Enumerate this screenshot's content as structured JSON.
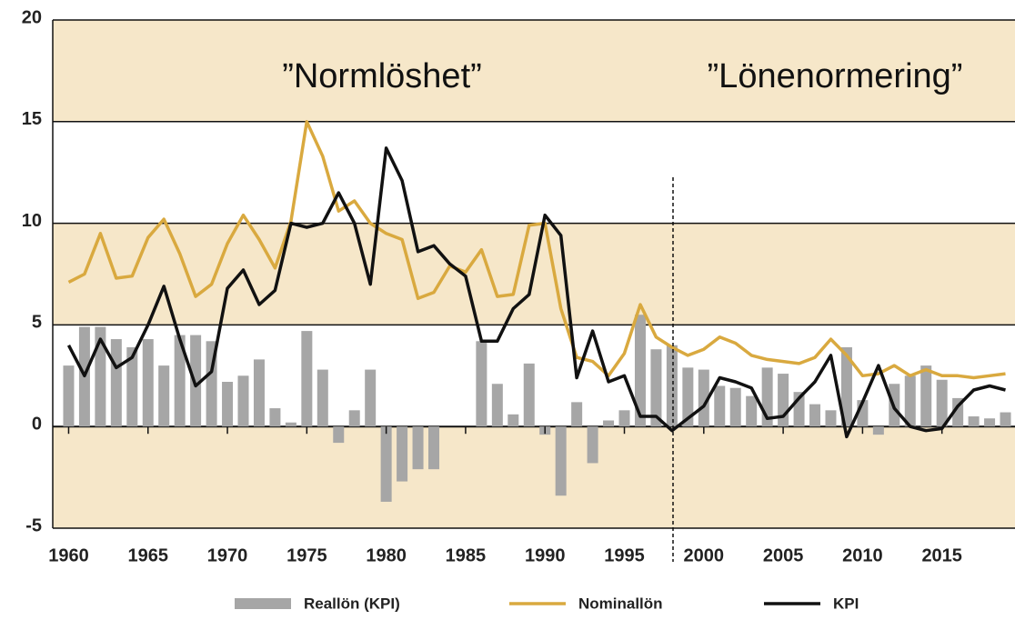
{
  "chart_data": {
    "type": "bar_line",
    "annotations": [
      "”Normlöshet”",
      "”Lönenormering”"
    ],
    "x": [
      1960,
      1961,
      1962,
      1963,
      1964,
      1965,
      1966,
      1967,
      1968,
      1969,
      1970,
      1971,
      1972,
      1973,
      1974,
      1975,
      1976,
      1977,
      1978,
      1979,
      1980,
      1981,
      1982,
      1983,
      1984,
      1985,
      1986,
      1987,
      1988,
      1989,
      1990,
      1991,
      1992,
      1993,
      1994,
      1995,
      1996,
      1997,
      1998,
      1999,
      2000,
      2001,
      2002,
      2003,
      2004,
      2005,
      2006,
      2007,
      2008,
      2009,
      2010,
      2011,
      2012,
      2013,
      2014,
      2015,
      2016,
      2017,
      2018,
      2019
    ],
    "series": [
      {
        "name": "Reallön (KPI)",
        "kind": "bar",
        "color": "#a6a6a6",
        "values": [
          3.0,
          4.9,
          4.9,
          4.3,
          3.9,
          4.3,
          3.0,
          4.5,
          4.5,
          4.2,
          2.2,
          2.5,
          3.3,
          0.9,
          0.2,
          4.7,
          2.8,
          -0.8,
          0.8,
          2.8,
          -3.7,
          -2.7,
          -2.1,
          -2.1,
          0.0,
          0.0,
          4.2,
          2.1,
          0.6,
          3.1,
          -0.4,
          -3.4,
          1.2,
          -1.8,
          0.3,
          0.8,
          5.5,
          3.8,
          4.0,
          2.9,
          2.8,
          2.0,
          1.9,
          1.5,
          2.9,
          2.6,
          1.7,
          1.1,
          0.8,
          3.9,
          1.3,
          -0.4,
          2.1,
          2.5,
          3.0,
          2.3,
          1.4,
          0.5,
          0.4,
          0.7
        ]
      },
      {
        "name": "Nominallön",
        "kind": "line",
        "color": "#d9a93f",
        "values": [
          7.1,
          7.5,
          9.5,
          7.3,
          7.4,
          9.3,
          10.2,
          8.5,
          6.4,
          7.0,
          9.0,
          10.4,
          9.2,
          7.8,
          10.1,
          15.0,
          13.3,
          10.6,
          11.1,
          10.0,
          9.5,
          9.2,
          6.3,
          6.6,
          7.9,
          7.6,
          8.7,
          6.4,
          6.5,
          9.9,
          10.0,
          5.8,
          3.4,
          3.2,
          2.5,
          3.6,
          6.0,
          4.4,
          3.9,
          3.5,
          3.8,
          4.4,
          4.1,
          3.5,
          3.3,
          3.2,
          3.1,
          3.4,
          4.3,
          3.5,
          2.5,
          2.6,
          3.0,
          2.5,
          2.8,
          2.5,
          2.5,
          2.4,
          2.5,
          2.6
        ]
      },
      {
        "name": "KPI",
        "kind": "line",
        "color": "#111111",
        "values": [
          4.0,
          2.5,
          4.3,
          2.9,
          3.4,
          5.0,
          6.9,
          4.3,
          2.0,
          2.7,
          6.8,
          7.7,
          6.0,
          6.7,
          10.0,
          9.8,
          10.0,
          11.5,
          10.0,
          7.0,
          13.7,
          12.1,
          8.6,
          8.9,
          8.0,
          7.4,
          4.2,
          4.2,
          5.8,
          6.5,
          10.4,
          9.4,
          2.4,
          4.7,
          2.2,
          2.5,
          0.5,
          0.5,
          -0.2,
          0.4,
          1.0,
          2.4,
          2.2,
          1.9,
          0.4,
          0.5,
          1.4,
          2.2,
          3.5,
          -0.5,
          1.2,
          3.0,
          0.9,
          0.0,
          -0.2,
          -0.1,
          1.0,
          1.8,
          2.0,
          1.8
        ]
      }
    ],
    "xlim": [
      1959,
      2019.6
    ],
    "xticks": [
      1960,
      1965,
      1970,
      1975,
      1980,
      1985,
      1990,
      1995,
      2000,
      2005,
      2010,
      2015
    ],
    "ylim": [
      -5,
      20
    ],
    "yticks": [
      -5,
      0,
      5,
      10,
      15,
      20
    ],
    "band_colors": [
      "#f6e7c9",
      "#ffffff"
    ]
  }
}
